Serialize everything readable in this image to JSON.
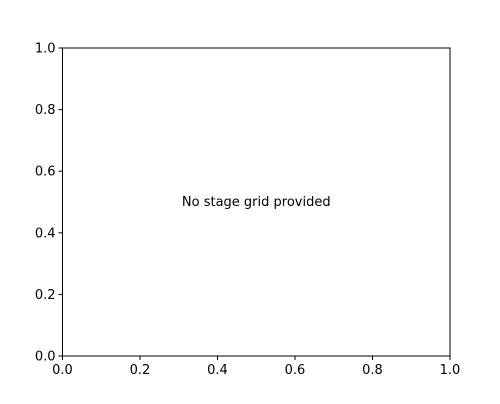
{
  "chart_data": {
    "type": "line",
    "title": "",
    "xlabel": "",
    "ylabel": "",
    "xlim": [
      0.0,
      1.0
    ],
    "ylim": [
      0.0,
      1.0
    ],
    "x_ticks": [
      "0.0",
      "0.2",
      "0.4",
      "0.6",
      "0.8",
      "1.0"
    ],
    "y_ticks": [
      "0.0",
      "0.2",
      "0.4",
      "0.6",
      "0.8",
      "1.0"
    ],
    "series": [],
    "grid": false,
    "annotation": "No stage grid provided"
  },
  "colors": {
    "background": "#ffffff",
    "axis": "#000000",
    "text": "#000000"
  }
}
